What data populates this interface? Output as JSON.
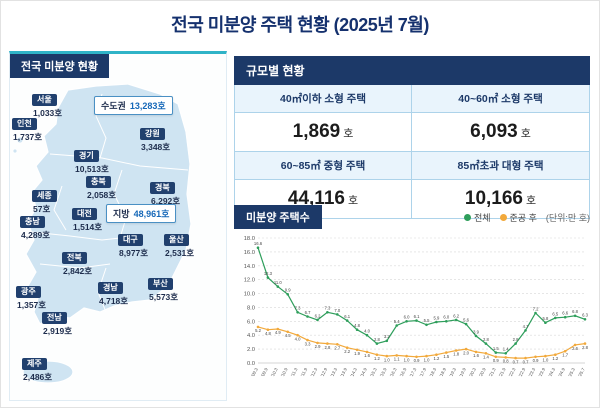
{
  "title": "전국 미분양 주택 현황 (2025년 7월)",
  "map_panel": {
    "header": "전국 미분양 현황",
    "aggregates": [
      {
        "name": "수도권",
        "value": "13,283호"
      },
      {
        "name": "지방",
        "value": "48,961호"
      }
    ],
    "regions": [
      {
        "name": "서울",
        "value": "1,033호"
      },
      {
        "name": "인천",
        "value": "1,737호"
      },
      {
        "name": "강원",
        "value": "3,348호"
      },
      {
        "name": "경기",
        "value": "10,513호"
      },
      {
        "name": "충북",
        "value": "2,058호"
      },
      {
        "name": "세종",
        "value": "57호"
      },
      {
        "name": "경북",
        "value": "6,292호"
      },
      {
        "name": "대전",
        "value": "1,514호"
      },
      {
        "name": "충남",
        "value": "4,289호"
      },
      {
        "name": "전북",
        "value": "2,842호"
      },
      {
        "name": "대구",
        "value": "8,977호"
      },
      {
        "name": "울산",
        "value": "2,531호"
      },
      {
        "name": "광주",
        "value": "1,357호"
      },
      {
        "name": "경남",
        "value": "4,718호"
      },
      {
        "name": "부산",
        "value": "5,573호"
      },
      {
        "name": "전남",
        "value": "2,919호"
      },
      {
        "name": "제주",
        "value": "2,486호"
      }
    ]
  },
  "size_panel": {
    "header": "규모별 현황",
    "cells": [
      {
        "label": "40㎡이하 소형 주택",
        "value": "1,869",
        "unit": "호"
      },
      {
        "label": "40~60㎡ 소형 주택",
        "value": "6,093",
        "unit": "호"
      },
      {
        "label": "60~85㎡ 중형 주택",
        "value": "44,116",
        "unit": "호"
      },
      {
        "label": "85㎡초과 대형 주택",
        "value": "10,166",
        "unit": "호"
      }
    ]
  },
  "chart_panel": {
    "header": "미분양 주택수",
    "unit_note": "(단위:만 호)"
  },
  "chart_data": {
    "type": "line",
    "title": "미분양 주택수",
    "unit": "만 호",
    "ylim": [
      0,
      18
    ],
    "ytick": 2,
    "grid": "dashed-horizontal",
    "legend_position": "top-right",
    "x": [
      "'09.3",
      "'09.9",
      "'10.3",
      "'10.9",
      "'11.3",
      "'11.9",
      "'12.3",
      "'12.9",
      "'13.3",
      "'13.9",
      "'14.3",
      "'14.9",
      "'15.3",
      "'15.9",
      "'16.3",
      "'16.9",
      "'17.3",
      "'17.9",
      "'18.3",
      "'18.9",
      "'19.3",
      "'19.9",
      "'20.3",
      "'20.9",
      "'21.3",
      "'21.9",
      "'22.3",
      "'22.9",
      "'23.3",
      "'23.9",
      "'24.3",
      "'24.9",
      "'25.3",
      "'25.7"
    ],
    "series": [
      {
        "name": "전체",
        "color": "#2e9e5b",
        "values": [
          16.6,
          12.3,
          11.0,
          9.9,
          7.3,
          6.7,
          6.2,
          7.3,
          7.0,
          6.1,
          4.8,
          4.0,
          2.8,
          3.2,
          5.4,
          6.0,
          6.1,
          5.5,
          5.9,
          6.0,
          6.2,
          5.6,
          3.9,
          2.8,
          1.5,
          1.4,
          2.8,
          4.7,
          7.2,
          5.8,
          6.5,
          6.6,
          6.8,
          6.3
        ]
      },
      {
        "name": "준공 후",
        "color": "#f2a93b",
        "values": [
          5.2,
          4.8,
          4.9,
          4.5,
          4.0,
          3.3,
          2.9,
          2.8,
          2.7,
          2.2,
          1.9,
          1.6,
          1.2,
          1.0,
          1.1,
          1.0,
          0.9,
          1.0,
          1.2,
          1.5,
          1.8,
          2.0,
          1.6,
          1.4,
          0.9,
          0.8,
          0.7,
          0.7,
          0.9,
          1.0,
          1.2,
          1.7,
          2.6,
          2.8
        ]
      }
    ]
  }
}
